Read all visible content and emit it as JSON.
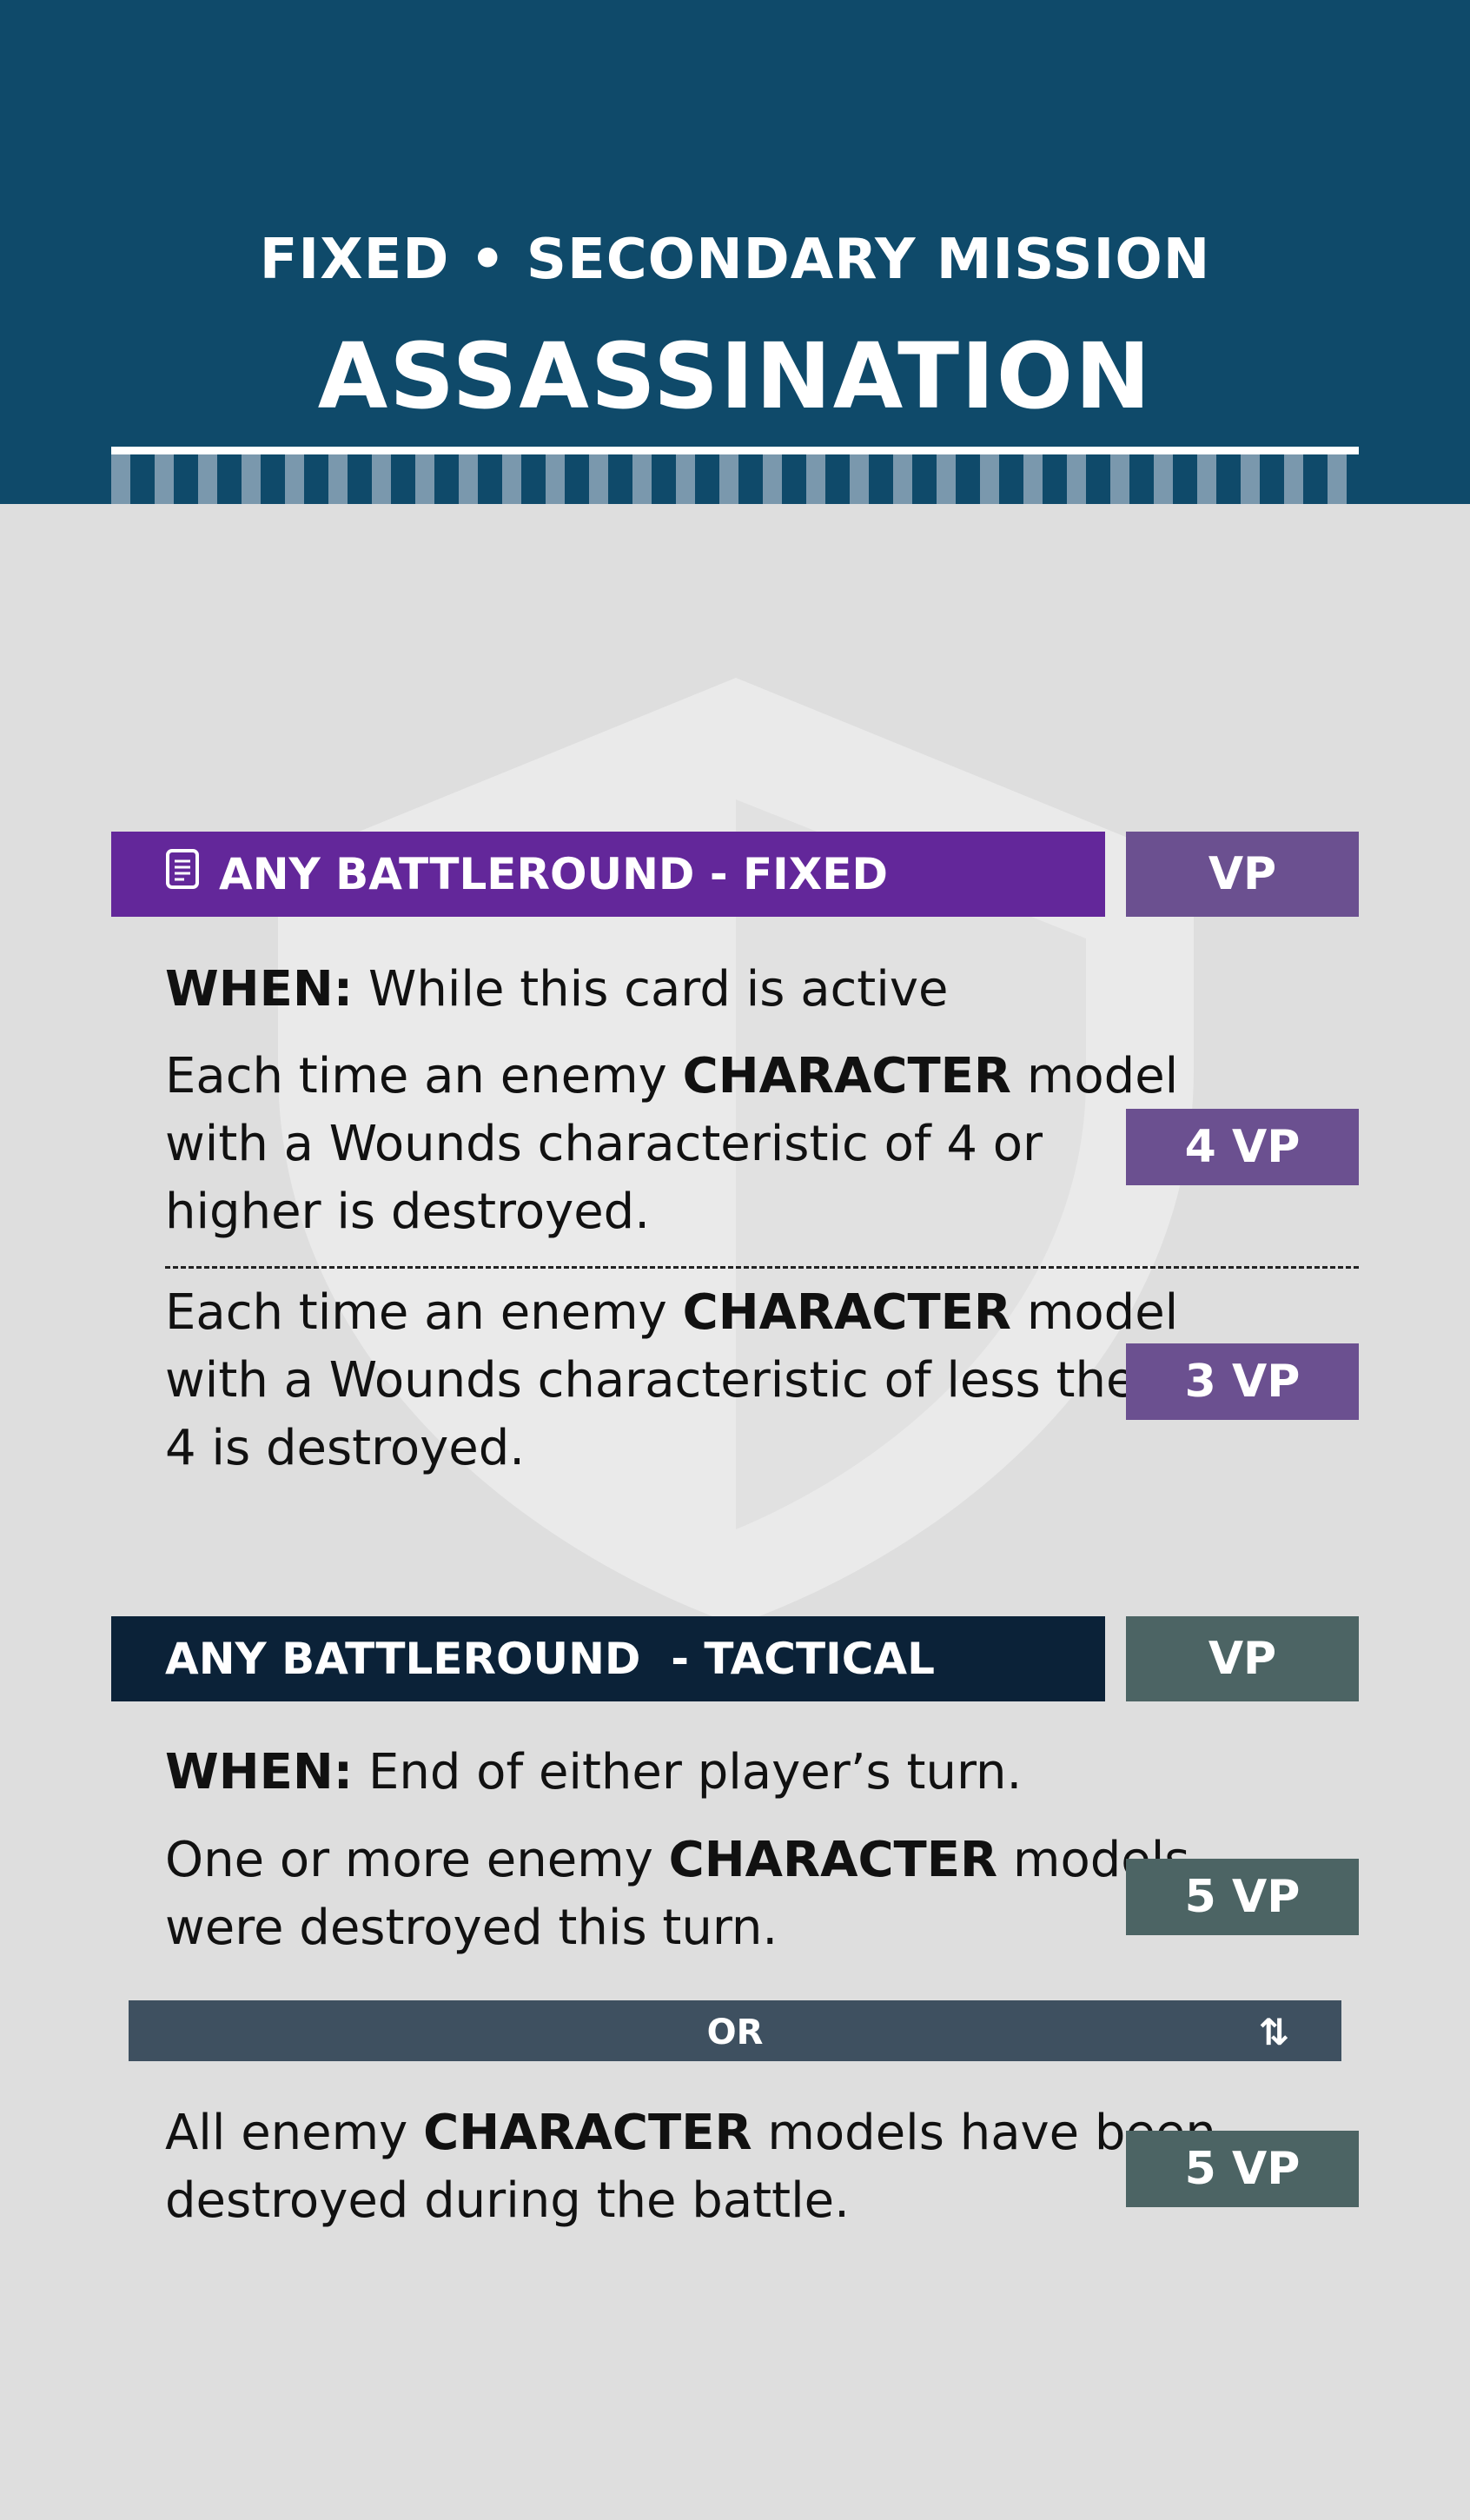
{
  "header": {
    "subtitle": "FIXED • SECONDARY MISSION",
    "title": "ASSASSINATION"
  },
  "colors": {
    "header_bg": "#0f4a6a",
    "fixed_bar": "#63279a",
    "fixed_vp": "#6b5090",
    "tactical_bar": "#0b2238",
    "tactical_vp": "#4c6464",
    "or_bar": "#3e5060"
  },
  "fixed_section": {
    "icon": "document-icon",
    "heading": "ANY BATTLEROUND - FIXED",
    "vp_header": "VP",
    "when_label": "WHEN:",
    "when_text": " While this card is active",
    "rows": [
      {
        "pre": "Each time an enemy ",
        "keyword": "CHARACTER",
        "post": " model",
        "line2": "with a Wounds characteristic of 4 or",
        "line3": "higher is destroyed.",
        "vp": "4 VP"
      },
      {
        "pre": "Each time an enemy ",
        "keyword": "CHARACTER",
        "post": " model",
        "line2": "with a Wounds characteristic of less then",
        "line3": "4 is destroyed.",
        "vp": "3 VP"
      }
    ]
  },
  "tactical_section": {
    "heading": "ANY BATTLEROUND  - TACTICAL",
    "vp_header": "VP",
    "when_label": "WHEN:",
    "when_text": " End of either player’s turn.",
    "rows": [
      {
        "pre": "One or more enemy ",
        "keyword": "CHARACTER",
        "post": " models",
        "line2": "were destroyed this turn.",
        "vp": "5 VP"
      },
      {
        "pre": "All enemy ",
        "keyword": "CHARACTER",
        "post": " models have been",
        "line2": "destroyed during the battle.",
        "vp": "5 VP"
      }
    ],
    "or_label": "OR",
    "or_icon": "swap-arrows-icon",
    "or_icon_glyph": "⇅"
  }
}
